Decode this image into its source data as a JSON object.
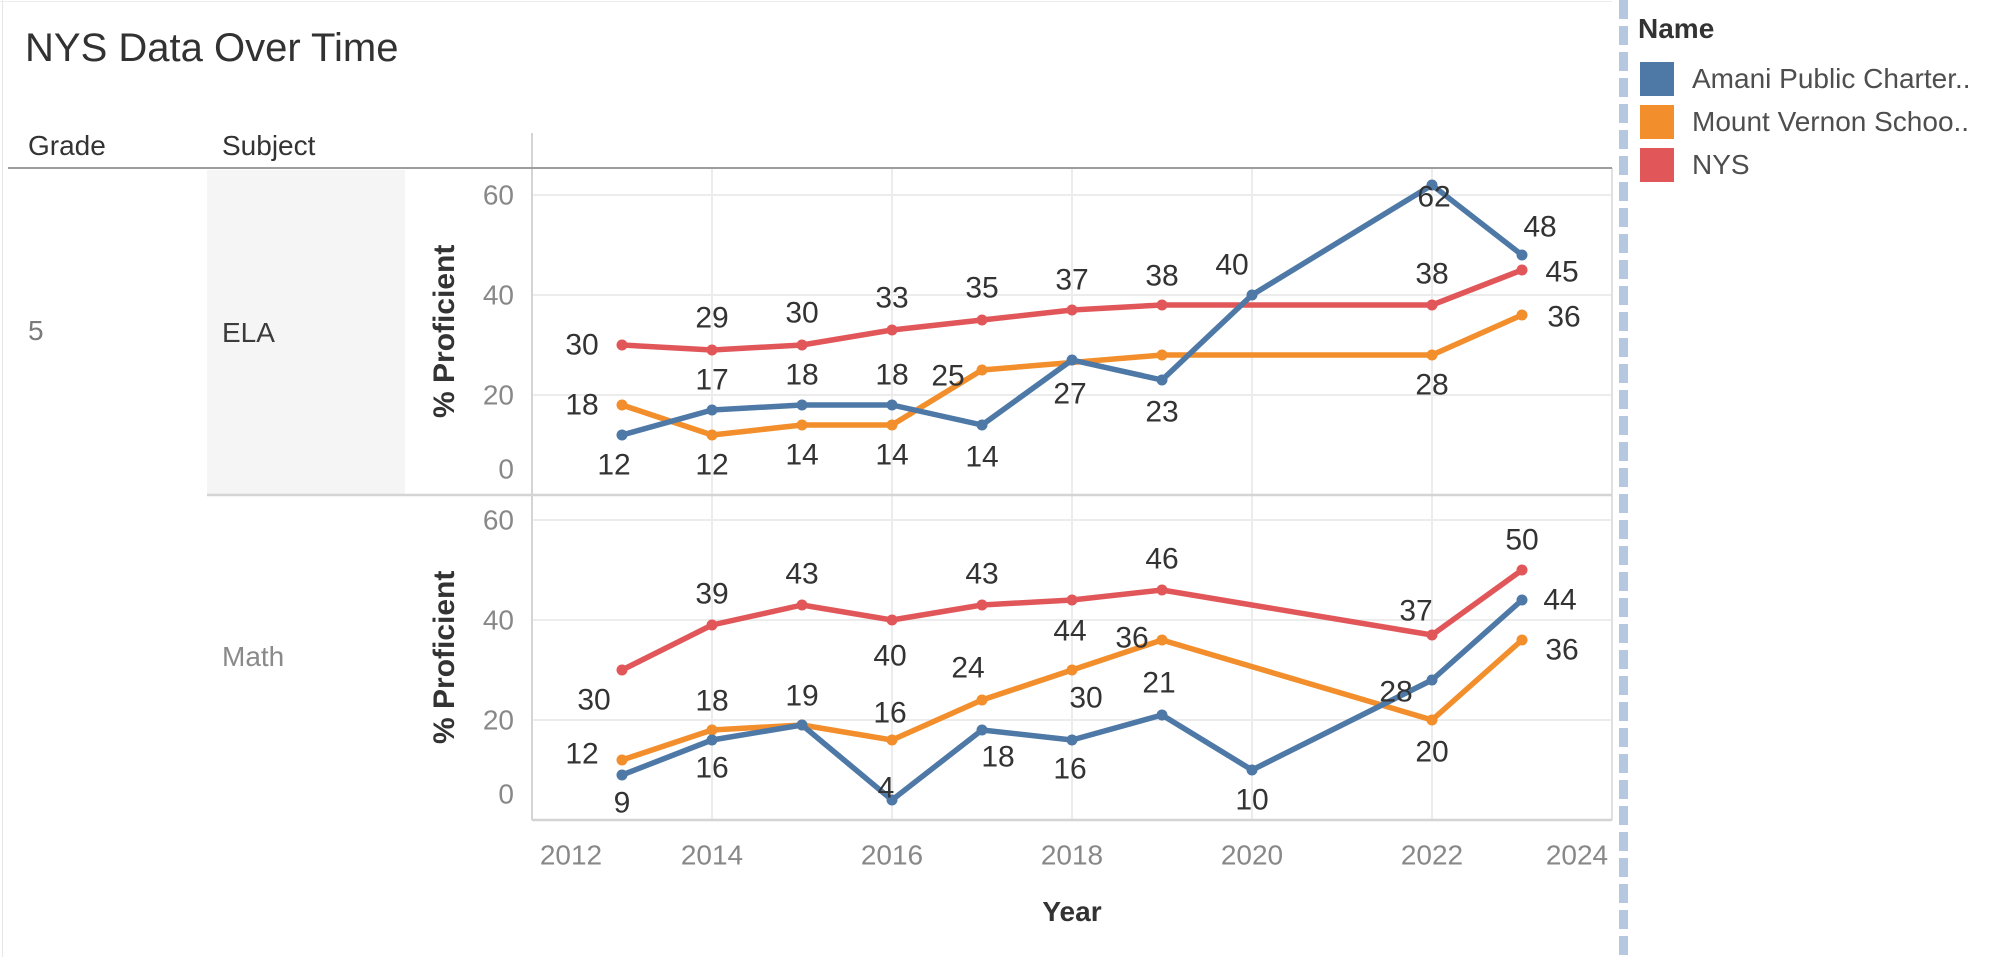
{
  "title": "NYS Data Over Time",
  "row_headers": {
    "grade": "Grade",
    "subject": "Subject"
  },
  "grade_label": "5",
  "legend": {
    "title": "Name",
    "items": [
      {
        "label": "Amani Public Charter..",
        "color": "#4e79a7"
      },
      {
        "label": "Mount Vernon Schoo..",
        "color": "#f28e2b"
      },
      {
        "label": "NYS",
        "color": "#e15759"
      }
    ]
  },
  "colors": {
    "amani_blue": "#4e79a7",
    "mount_vernon_orange": "#f28e2b",
    "nys_red": "#e15759",
    "grid": "#ececec",
    "axis_line": "#d4d4d4",
    "pane_right_border": "#e0e0e0",
    "header_divider": "#9d9d9d",
    "tick_text": "#888888",
    "data_label_text": "#333333",
    "separator_dash": "#b6c8e0"
  },
  "chart_data": [
    {
      "type": "line",
      "grade": "5",
      "subject": "ELA",
      "ylabel": "% Proficient",
      "xlabel": "Year",
      "ylim": [
        0,
        65
      ],
      "yticks": [
        0,
        20,
        40,
        60
      ],
      "x_range": [
        2012,
        2024
      ],
      "grid": true,
      "legend_position": "right",
      "series": [
        {
          "name": "Amani Public Charter School",
          "color": "#4e79a7",
          "points": [
            {
              "year": 2013,
              "v": 12,
              "label": "12",
              "dx": -8,
              "dy": 30
            },
            {
              "year": 2014,
              "v": 17,
              "label": "17",
              "dx": 0,
              "dy": -30
            },
            {
              "year": 2015,
              "v": 18,
              "label": "18",
              "dx": 0,
              "dy": -30
            },
            {
              "year": 2016,
              "v": 18,
              "label": "18",
              "dx": 0,
              "dy": -30
            },
            {
              "year": 2017,
              "v": 14,
              "label": "14",
              "dx": 0,
              "dy": 32
            },
            {
              "year": 2018,
              "v": 27,
              "label": "27",
              "dx": -2,
              "dy": 34
            },
            {
              "year": 2019,
              "v": 23,
              "label": "23",
              "dx": 0,
              "dy": 32
            },
            {
              "year": 2020,
              "v": 40,
              "label": "40",
              "dx": -20,
              "dy": -30
            },
            {
              "year": 2022,
              "v": 62,
              "label": "62",
              "dx": 2,
              "dy": 12
            },
            {
              "year": 2023,
              "v": 48,
              "label": "48",
              "dx": 18,
              "dy": -28
            }
          ]
        },
        {
          "name": "Mount Vernon School District",
          "color": "#f28e2b",
          "points": [
            {
              "year": 2013,
              "v": 18,
              "label": "18",
              "dx": -40,
              "dy": 0
            },
            {
              "year": 2014,
              "v": 12,
              "label": "12",
              "dx": 0,
              "dy": 30
            },
            {
              "year": 2015,
              "v": 14,
              "label": "14",
              "dx": 0,
              "dy": 30
            },
            {
              "year": 2016,
              "v": 14,
              "label": "14",
              "dx": 0,
              "dy": 30
            },
            {
              "year": 2017,
              "v": 25,
              "label": "25",
              "dx": -34,
              "dy": 6
            },
            {
              "year": 2019,
              "v": 28,
              "label": null,
              "dx": 0,
              "dy": 0
            },
            {
              "year": 2022,
              "v": 28,
              "label": "28",
              "dx": 0,
              "dy": 30
            },
            {
              "year": 2023,
              "v": 36,
              "label": "36",
              "dx": 42,
              "dy": 2
            }
          ]
        },
        {
          "name": "NYS",
          "color": "#e15759",
          "points": [
            {
              "year": 2013,
              "v": 30,
              "label": "30",
              "dx": -40,
              "dy": 0
            },
            {
              "year": 2014,
              "v": 29,
              "label": "29",
              "dx": 0,
              "dy": -32
            },
            {
              "year": 2015,
              "v": 30,
              "label": "30",
              "dx": 0,
              "dy": -32
            },
            {
              "year": 2016,
              "v": 33,
              "label": "33",
              "dx": 0,
              "dy": -32
            },
            {
              "year": 2017,
              "v": 35,
              "label": "35",
              "dx": 0,
              "dy": -32
            },
            {
              "year": 2018,
              "v": 37,
              "label": "37",
              "dx": 0,
              "dy": -30
            },
            {
              "year": 2019,
              "v": 38,
              "label": "38",
              "dx": 0,
              "dy": -29
            },
            {
              "year": 2022,
              "v": 38,
              "label": "38",
              "dx": 0,
              "dy": -31
            },
            {
              "year": 2023,
              "v": 45,
              "label": "45",
              "dx": 40,
              "dy": 2
            }
          ]
        }
      ]
    },
    {
      "type": "line",
      "grade": "5",
      "subject": "Math",
      "ylabel": "% Proficient",
      "xlabel": "Year",
      "ylim": [
        0,
        65
      ],
      "yticks": [
        0,
        20,
        40,
        60
      ],
      "x_range": [
        2012,
        2024
      ],
      "grid": true,
      "x_ticks": [
        "2012",
        "2014",
        "2016",
        "2018",
        "2020",
        "2022",
        "2024"
      ],
      "series": [
        {
          "name": "Amani Public Charter School",
          "color": "#4e79a7",
          "points": [
            {
              "year": 2013,
              "v": 9,
              "label": "9",
              "dx": 0,
              "dy": 28
            },
            {
              "year": 2014,
              "v": 16,
              "label": "16",
              "dx": 0,
              "dy": 28
            },
            {
              "year": 2015,
              "v": 19,
              "label": null,
              "dx": 0,
              "dy": 0
            },
            {
              "year": 2016,
              "v": 4,
              "label": "4",
              "dx": -6,
              "dy": -12
            },
            {
              "year": 2017,
              "v": 18,
              "label": "18",
              "dx": 16,
              "dy": 27
            },
            {
              "year": 2018,
              "v": 16,
              "label": "16",
              "dx": -2,
              "dy": 29
            },
            {
              "year": 2019,
              "v": 21,
              "label": "21",
              "dx": -3,
              "dy": -32
            },
            {
              "year": 2020,
              "v": 10,
              "label": "10",
              "dx": 0,
              "dy": 30
            },
            {
              "year": 2022,
              "v": 28,
              "label": "28",
              "dx": -36,
              "dy": 12
            },
            {
              "year": 2023,
              "v": 44,
              "label": "44",
              "dx": 38,
              "dy": 0
            }
          ]
        },
        {
          "name": "Mount Vernon School District",
          "color": "#f28e2b",
          "points": [
            {
              "year": 2013,
              "v": 12,
              "label": "12",
              "dx": -40,
              "dy": -6
            },
            {
              "year": 2014,
              "v": 18,
              "label": "18",
              "dx": 0,
              "dy": -29
            },
            {
              "year": 2015,
              "v": 19,
              "label": "19",
              "dx": 0,
              "dy": -29
            },
            {
              "year": 2016,
              "v": 16,
              "label": "16",
              "dx": -2,
              "dy": -27
            },
            {
              "year": 2017,
              "v": 24,
              "label": "24",
              "dx": -14,
              "dy": -32
            },
            {
              "year": 2018,
              "v": 30,
              "label": "30",
              "dx": 14,
              "dy": 28
            },
            {
              "year": 2019,
              "v": 36,
              "label": "36",
              "dx": -30,
              "dy": -2
            },
            {
              "year": 2022,
              "v": 20,
              "label": "20",
              "dx": 0,
              "dy": 32
            },
            {
              "year": 2023,
              "v": 36,
              "label": "36",
              "dx": 40,
              "dy": 10
            }
          ]
        },
        {
          "name": "NYS",
          "color": "#e15759",
          "points": [
            {
              "year": 2013,
              "v": 30,
              "label": "30",
              "dx": -28,
              "dy": 30
            },
            {
              "year": 2014,
              "v": 39,
              "label": "39",
              "dx": 0,
              "dy": -31
            },
            {
              "year": 2015,
              "v": 43,
              "label": "43",
              "dx": 0,
              "dy": -31
            },
            {
              "year": 2016,
              "v": 40,
              "label": "40",
              "dx": -2,
              "dy": 36
            },
            {
              "year": 2017,
              "v": 43,
              "label": "43",
              "dx": 0,
              "dy": -31
            },
            {
              "year": 2018,
              "v": 44,
              "label": "44",
              "dx": -2,
              "dy": 31
            },
            {
              "year": 2019,
              "v": 46,
              "label": "46",
              "dx": 0,
              "dy": -31
            },
            {
              "year": 2022,
              "v": 37,
              "label": "37",
              "dx": -16,
              "dy": -24
            },
            {
              "year": 2023,
              "v": 50,
              "label": "50",
              "dx": 0,
              "dy": -30
            }
          ]
        }
      ]
    }
  ]
}
